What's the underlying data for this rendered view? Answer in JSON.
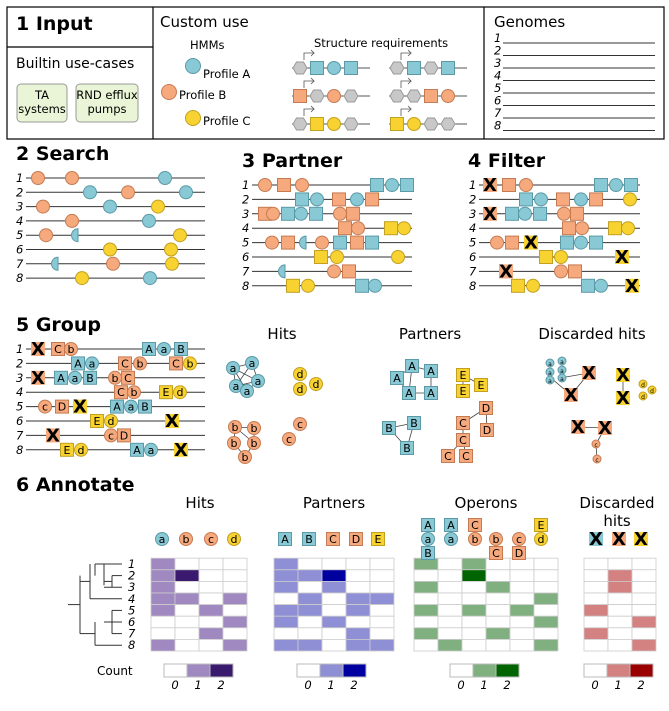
{
  "panels": {
    "input": "1 Input",
    "custom_use": "Custom use",
    "genomes": "Genomes",
    "builtin": "Builtin use-cases",
    "ta": [
      "TA",
      "systems"
    ],
    "rnd": [
      "RND efflux",
      "pumps"
    ],
    "hmms": "HMMs",
    "struct_req": "Structure requirements",
    "profiles": [
      "Profile A",
      "Profile B",
      "Profile C"
    ],
    "search": "2 Search",
    "partner": "3 Partner",
    "filter": "4 Filter",
    "group": "5 Group",
    "hits": "Hits",
    "partners": "Partners",
    "discarded": "Discarded hits",
    "annotate": "6 Annotate",
    "ann_titles": [
      "Hits",
      "Partners",
      "Operons",
      "Discarded",
      "hits"
    ],
    "count": "Count"
  },
  "genome_numbers": [
    "1",
    "2",
    "3",
    "4",
    "5",
    "6",
    "7",
    "8"
  ],
  "gene_letters": {
    "a": "a",
    "b": "b",
    "c": "c",
    "d": "d",
    "A": "A",
    "B": "B",
    "C": "C",
    "D": "D",
    "E": "E",
    "X": "X"
  },
  "colors": {
    "profile_a": "#89c9d6",
    "profile_b": "#f5a97d",
    "profile_c": "#f7d231",
    "grey": "#c8c8c8",
    "box": "#e9f5d6",
    "hits_fill": "#a088c0",
    "hits_dark": "#3a1a6e",
    "partners_fill": "#8f8fd6",
    "partners_dark": "#0000a0",
    "operons_fill": "#80b080",
    "operons_dark": "#006400",
    "discarded_fill": "#d38181",
    "discarded_dark": "#9b0000"
  },
  "legend_ticks": [
    "0",
    "1",
    "2"
  ],
  "heatmaps": {
    "hits": [
      [
        1,
        0,
        0,
        0
      ],
      [
        1,
        2,
        0,
        0
      ],
      [
        1,
        0,
        0,
        0
      ],
      [
        1,
        1,
        0,
        1
      ],
      [
        1,
        0,
        1,
        0
      ],
      [
        0,
        0,
        0,
        1
      ],
      [
        0,
        0,
        1,
        0
      ],
      [
        1,
        0,
        0,
        1
      ]
    ],
    "partners": [
      [
        1,
        0,
        0,
        0,
        0
      ],
      [
        1,
        1,
        2,
        0,
        0
      ],
      [
        1,
        0,
        1,
        0,
        0
      ],
      [
        0,
        1,
        0,
        1,
        1
      ],
      [
        1,
        1,
        0,
        1,
        0
      ],
      [
        1,
        0,
        1,
        0,
        0
      ],
      [
        0,
        0,
        0,
        1,
        0
      ],
      [
        1,
        1,
        0,
        1,
        1
      ]
    ],
    "operons": [
      [
        1,
        0,
        1,
        0,
        0,
        0
      ],
      [
        0,
        0,
        2,
        0,
        0,
        0
      ],
      [
        1,
        0,
        0,
        1,
        0,
        0
      ],
      [
        0,
        0,
        0,
        0,
        0,
        1
      ],
      [
        1,
        0,
        1,
        0,
        1,
        0
      ],
      [
        0,
        0,
        0,
        0,
        0,
        1
      ],
      [
        1,
        0,
        0,
        1,
        0,
        0
      ],
      [
        0,
        1,
        0,
        0,
        0,
        1
      ]
    ],
    "discarded": [
      [
        0,
        0,
        0
      ],
      [
        0,
        1,
        0
      ],
      [
        0,
        1,
        0
      ],
      [
        0,
        0,
        0
      ],
      [
        1,
        0,
        0
      ],
      [
        0,
        0,
        1
      ],
      [
        1,
        0,
        0
      ],
      [
        0,
        0,
        1
      ]
    ]
  }
}
